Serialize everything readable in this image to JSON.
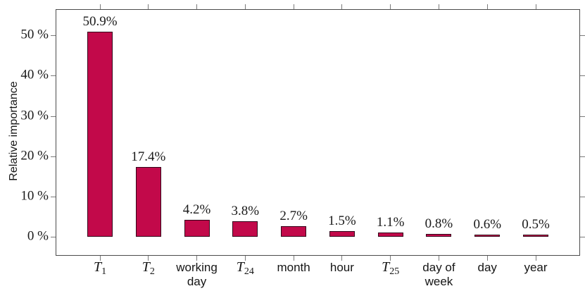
{
  "figure": {
    "background_color": "#ffffff",
    "text_color": "#1a1a1a"
  },
  "chart_data": {
    "type": "bar",
    "title": "",
    "xlabel": "",
    "ylabel": "Relative importance",
    "categories": [
      "T1",
      "T2",
      "working day",
      "T24",
      "month",
      "hour",
      "T25",
      "day of week",
      "day",
      "year"
    ],
    "category_display": [
      {
        "type": "math",
        "base": "T",
        "sub": "1"
      },
      {
        "type": "math",
        "base": "T",
        "sub": "2"
      },
      {
        "type": "text",
        "lines": [
          "working",
          "day"
        ]
      },
      {
        "type": "math",
        "base": "T",
        "sub": "24"
      },
      {
        "type": "text",
        "lines": [
          "month"
        ]
      },
      {
        "type": "text",
        "lines": [
          "hour"
        ]
      },
      {
        "type": "math",
        "base": "T",
        "sub": "25"
      },
      {
        "type": "text",
        "lines": [
          "day of",
          "week"
        ]
      },
      {
        "type": "text",
        "lines": [
          "day"
        ]
      },
      {
        "type": "text",
        "lines": [
          "year"
        ]
      }
    ],
    "values": [
      50.9,
      17.4,
      4.2,
      3.8,
      2.7,
      1.5,
      1.1,
      0.8,
      0.6,
      0.5
    ],
    "bar_labels": [
      "50.9%",
      "17.4%",
      "4.2%",
      "3.8%",
      "2.7%",
      "1.5%",
      "1.1%",
      "0.8%",
      "0.6%",
      "0.5%"
    ],
    "yticks": {
      "values": [
        0,
        10,
        20,
        30,
        40,
        50
      ],
      "labels": [
        "0 %",
        "10 %",
        "20 %",
        "30 %",
        "40 %",
        "50 %"
      ]
    },
    "ylim": [
      -4.7,
      56.5
    ],
    "grid": false,
    "legend": "none",
    "bar_color": "#c2094a",
    "bar_border_color": "#33051a",
    "axis_color": "#4c4c4c",
    "tick_color": "#7a7a7a"
  }
}
